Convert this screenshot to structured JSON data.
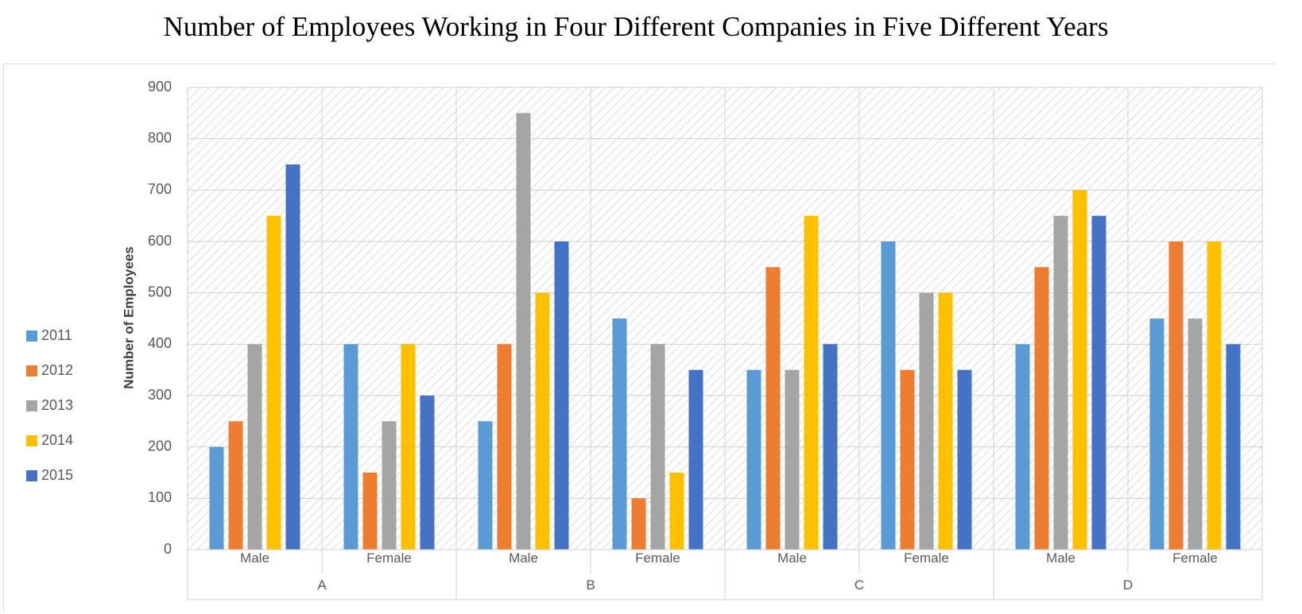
{
  "chart_data": {
    "type": "bar",
    "title": "Number of Employees  Working in Four Different Companies in Five Different Years",
    "xlabel": "",
    "ylabel": "Number of Employees",
    "ylim": [
      0,
      900
    ],
    "yticks": [
      0,
      100,
      200,
      300,
      400,
      500,
      600,
      700,
      800,
      900
    ],
    "companies": [
      "A",
      "B",
      "C",
      "D"
    ],
    "genders": [
      "Male",
      "Female"
    ],
    "categories": [
      "A Male",
      "A Female",
      "B Male",
      "B Female",
      "C Male",
      "C Female",
      "D Male",
      "D Female"
    ],
    "series": [
      {
        "name": "2011",
        "color": "#5b9bd5",
        "values": [
          200,
          400,
          250,
          450,
          350,
          600,
          400,
          450
        ]
      },
      {
        "name": "2012",
        "color": "#ed7d31",
        "values": [
          250,
          150,
          400,
          100,
          550,
          350,
          550,
          600
        ]
      },
      {
        "name": "2013",
        "color": "#a5a5a5",
        "values": [
          400,
          250,
          850,
          400,
          350,
          500,
          650,
          450
        ]
      },
      {
        "name": "2014",
        "color": "#ffc000",
        "values": [
          650,
          400,
          500,
          150,
          650,
          500,
          700,
          600
        ]
      },
      {
        "name": "2015",
        "color": "#4472c4",
        "values": [
          750,
          300,
          600,
          350,
          400,
          350,
          650,
          400
        ]
      }
    ],
    "grid": true,
    "legend_position": "left"
  }
}
